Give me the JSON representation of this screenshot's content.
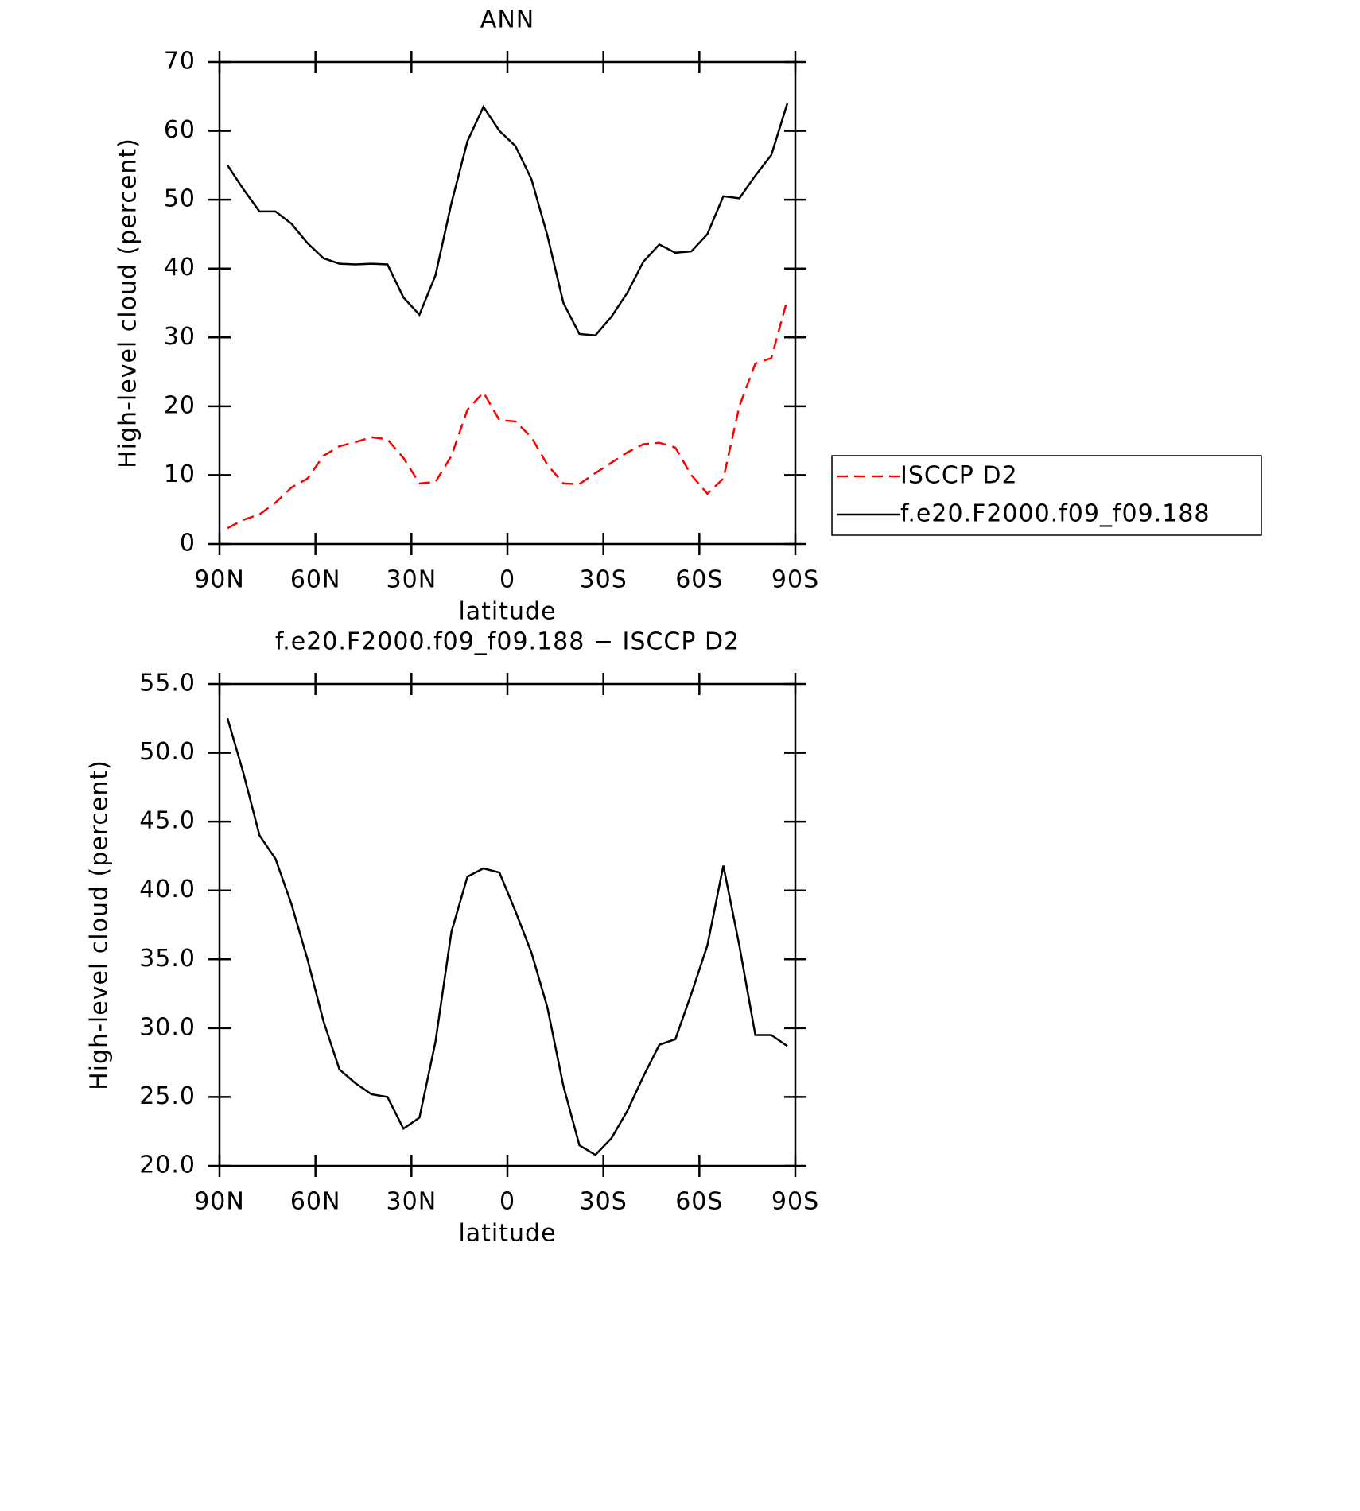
{
  "chart_data": [
    {
      "type": "line",
      "title": "ANN",
      "xlabel": "latitude",
      "ylabel": "High-level cloud (percent)",
      "x": [
        87.5,
        82.5,
        77.5,
        72.5,
        67.5,
        62.5,
        57.5,
        52.5,
        47.5,
        42.5,
        37.5,
        32.5,
        27.5,
        22.5,
        17.5,
        12.5,
        7.5,
        2.5,
        -2.5,
        -7.5,
        -12.5,
        -17.5,
        -22.5,
        -27.5,
        -32.5,
        -37.5,
        -42.5,
        -47.5,
        -52.5,
        -57.5,
        -62.5,
        -67.5,
        -72.5,
        -77.5,
        -82.5,
        -87.5
      ],
      "series": [
        {
          "name": "ISCCP D2",
          "color": "#ff0000",
          "dashed": true,
          "values": [
            2.3,
            3.5,
            4.3,
            6.0,
            8.2,
            9.5,
            12.8,
            14.2,
            14.8,
            15.5,
            15.2,
            12.5,
            8.8,
            9.0,
            12.8,
            19.5,
            22.0,
            18.0,
            17.8,
            15.5,
            11.5,
            8.8,
            8.7,
            10.3,
            11.8,
            13.3,
            14.5,
            14.7,
            14.0,
            10.0,
            7.3,
            9.5,
            20,
            26.2,
            27,
            35.5
          ]
        },
        {
          "name": "f.e20.F2000.f09_f09.188",
          "color": "#000000",
          "dashed": false,
          "values": [
            55,
            51.5,
            48.3,
            48.3,
            46.5,
            43.7,
            41.5,
            40.7,
            40.6,
            40.7,
            40.6,
            35.8,
            33.3,
            39.0,
            49.5,
            58.5,
            63.5,
            60.0,
            57.8,
            53,
            44.8,
            35,
            30.5,
            30.3,
            33,
            36.5,
            41,
            43.5,
            42.3,
            42.5,
            45,
            50.5,
            50.2,
            53.5,
            56.5,
            64
          ]
        }
      ],
      "xlim": [
        90,
        -90
      ],
      "xticks": [
        {
          "value": 90,
          "label": "90N"
        },
        {
          "value": 60,
          "label": "60N"
        },
        {
          "value": 30,
          "label": "30N"
        },
        0,
        {
          "value": -30,
          "label": "30S"
        },
        {
          "value": -60,
          "label": "60S"
        },
        {
          "value": -90,
          "label": "90S"
        }
      ],
      "ylim": [
        0,
        70
      ],
      "yticks": [
        0,
        10,
        20,
        30,
        40,
        50,
        60,
        70
      ],
      "legend": "right"
    },
    {
      "type": "line",
      "title": "f.e20.F2000.f09_f09.188 − ISCCP D2",
      "xlabel": "latitude",
      "ylabel": "High-level cloud (percent)",
      "x": [
        87.5,
        82.5,
        77.5,
        72.5,
        67.5,
        62.5,
        57.5,
        52.5,
        47.5,
        42.5,
        37.5,
        32.5,
        27.5,
        22.5,
        17.5,
        12.5,
        7.5,
        2.5,
        -2.5,
        -7.5,
        -12.5,
        -17.5,
        -22.5,
        -27.5,
        -32.5,
        -37.5,
        -42.5,
        -47.5,
        -52.5,
        -57.5,
        -62.5,
        -67.5,
        -72.5,
        -77.5,
        -82.5,
        -87.5
      ],
      "series": [
        {
          "color": "#000000",
          "dashed": false,
          "values": [
            52.5,
            48.5,
            44.0,
            42.3,
            39,
            35,
            30.5,
            27,
            26,
            25.2,
            25,
            22.7,
            23.5,
            29,
            37,
            41,
            41.6,
            41.3,
            38.5,
            35.5,
            31.5,
            25.8,
            21.5,
            20.8,
            22,
            24,
            26.5,
            28.8,
            29.2,
            32.5,
            36,
            41.8,
            36,
            29.5,
            29.5,
            28.7
          ]
        }
      ],
      "xlim": [
        90,
        -90
      ],
      "xticks": [
        {
          "value": 90,
          "label": "90N"
        },
        {
          "value": 60,
          "label": "60N"
        },
        {
          "value": 30,
          "label": "30N"
        },
        0,
        {
          "value": -30,
          "label": "30S"
        },
        {
          "value": -60,
          "label": "60S"
        },
        {
          "value": -90,
          "label": "90S"
        }
      ],
      "ylim": [
        20,
        55
      ],
      "yticks": [
        {
          "value": 20,
          "label": "20.0"
        },
        {
          "value": 25,
          "label": "25.0"
        },
        {
          "value": 30,
          "label": "30.0"
        },
        {
          "value": 35,
          "label": "35.0"
        },
        {
          "value": 40,
          "label": "40.0"
        },
        {
          "value": 45,
          "label": "45.0"
        },
        {
          "value": 50,
          "label": "50.0"
        },
        {
          "value": 55,
          "label": "55.0"
        }
      ]
    }
  ]
}
